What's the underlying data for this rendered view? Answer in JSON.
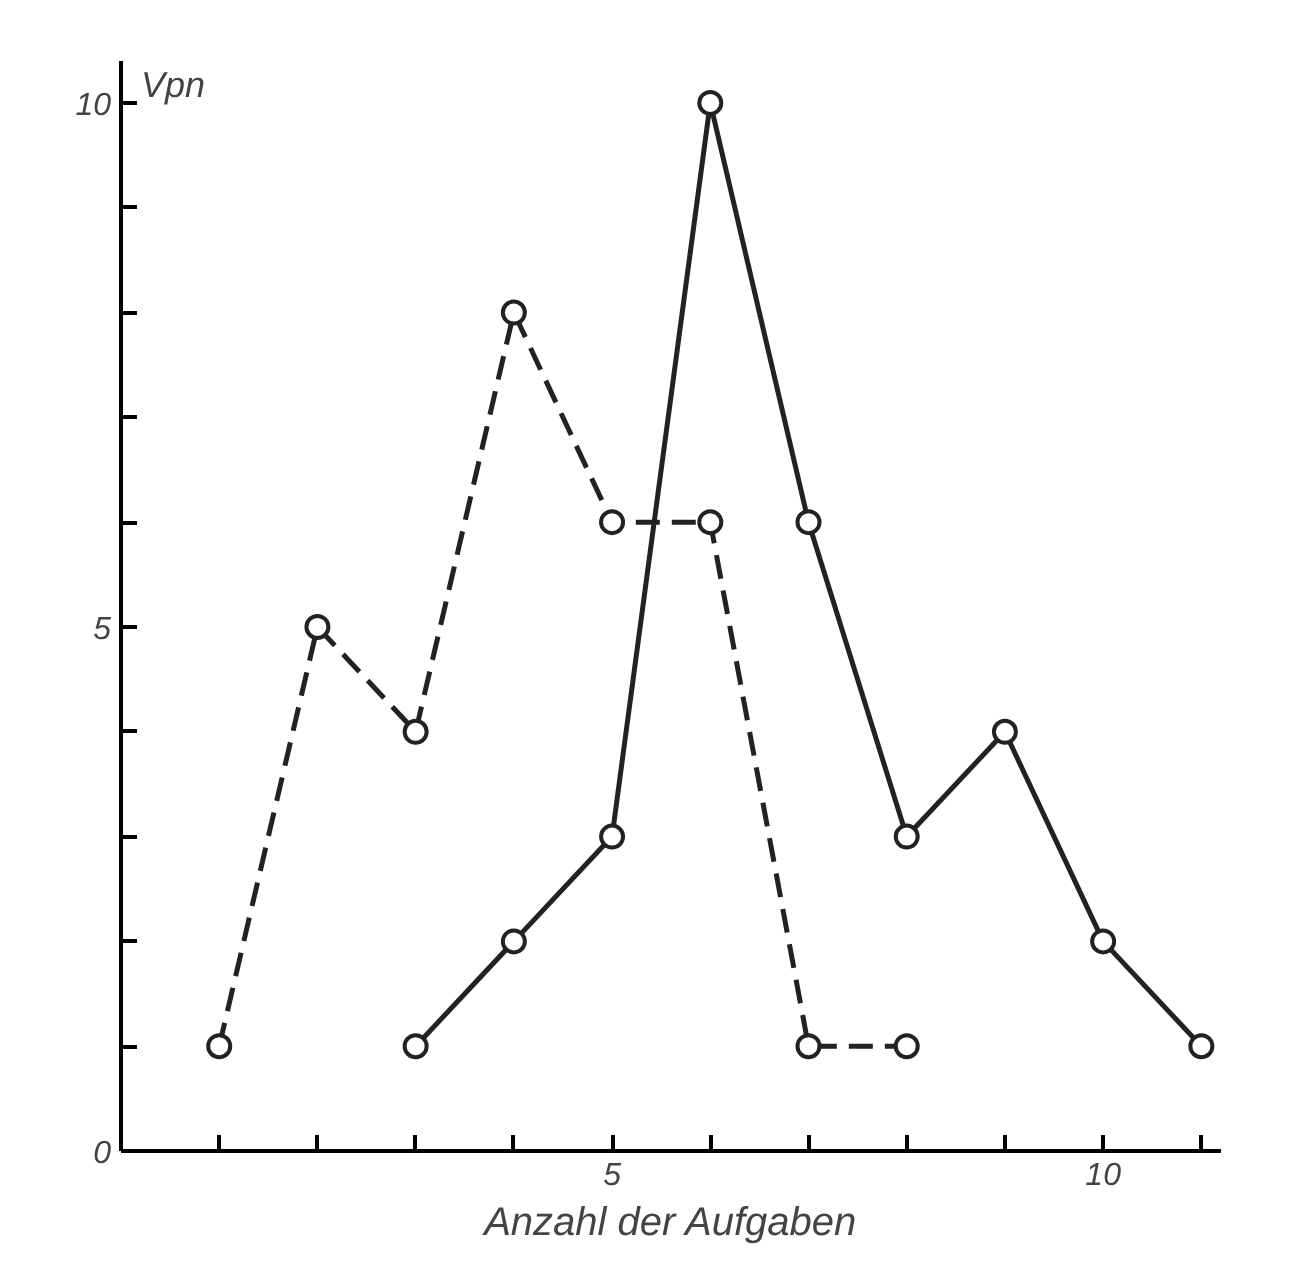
{
  "chart_data": {
    "type": "line",
    "xlabel": "Anzahl der Aufgaben",
    "ylabel": "Vpn",
    "xlim": [
      0,
      11.2
    ],
    "ylim": [
      0,
      10.4
    ],
    "xticks": [
      {
        "value": 1,
        "label": null
      },
      {
        "value": 2,
        "label": null
      },
      {
        "value": 3,
        "label": null
      },
      {
        "value": 4,
        "label": null
      },
      5,
      {
        "value": 6,
        "label": null
      },
      {
        "value": 7,
        "label": null
      },
      {
        "value": 8,
        "label": null
      },
      {
        "value": 9,
        "label": null
      },
      10,
      {
        "value": 11,
        "label": null
      }
    ],
    "yticks": [
      0,
      {
        "value": 1,
        "label": null
      },
      {
        "value": 2,
        "label": null
      },
      {
        "value": 3,
        "label": null
      },
      {
        "value": 4,
        "label": null
      },
      5,
      {
        "value": 6,
        "label": null
      },
      {
        "value": 7,
        "label": null
      },
      {
        "value": 8,
        "label": null
      },
      {
        "value": 9,
        "label": null
      },
      10
    ],
    "marker": "circle",
    "grid": false,
    "series": [
      {
        "color": "#222222",
        "line_style": "dashed",
        "x": [
          1,
          2,
          3,
          4,
          5,
          6,
          7,
          8
        ],
        "values": [
          1,
          5,
          4,
          8,
          6,
          6,
          1,
          1
        ]
      },
      {
        "color": "#222222",
        "line_style": "solid",
        "x": [
          3,
          4,
          5,
          6,
          7,
          8,
          9,
          10,
          11
        ],
        "values": [
          1,
          2,
          3,
          10,
          6,
          3,
          4,
          2,
          1
        ]
      }
    ]
  }
}
